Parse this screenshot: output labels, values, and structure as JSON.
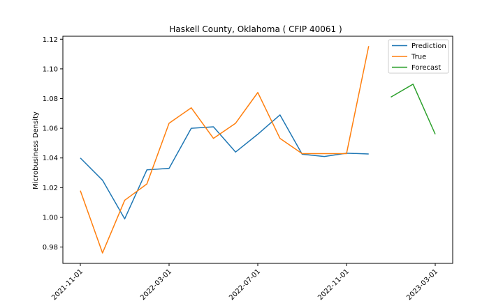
{
  "chart_data": {
    "type": "line",
    "title": "Haskell County, Oklahoma ( CFIP 40061 )",
    "xlabel": "",
    "ylabel": "Microbusiness Density",
    "x_dates": [
      "2021-11-01",
      "2021-12-01",
      "2022-01-01",
      "2022-02-01",
      "2022-03-01",
      "2022-04-01",
      "2022-05-01",
      "2022-06-01",
      "2022-07-01",
      "2022-08-01",
      "2022-09-01",
      "2022-10-01",
      "2022-11-01",
      "2022-12-01",
      "2023-01-01",
      "2023-02-01",
      "2023-03-01"
    ],
    "xticks": [
      "2021-11-01",
      "2022-03-01",
      "2022-07-01",
      "2022-11-01",
      "2023-03-01"
    ],
    "ylim": [
      0.969,
      1.122
    ],
    "yticks": [
      "0.98",
      "1.00",
      "1.02",
      "1.04",
      "1.06",
      "1.08",
      "1.10",
      "1.12"
    ],
    "legend_position": "top-right",
    "series": [
      {
        "name": "Prediction",
        "color": "#1f77b4",
        "x": [
          "2021-11-01",
          "2021-12-01",
          "2022-01-01",
          "2022-02-01",
          "2022-03-01",
          "2022-04-01",
          "2022-05-01",
          "2022-06-01",
          "2022-07-01",
          "2022-08-01",
          "2022-09-01",
          "2022-10-01",
          "2022-11-01",
          "2022-12-01"
        ],
        "values": [
          1.04,
          1.025,
          0.999,
          1.032,
          1.033,
          1.06,
          1.061,
          1.044,
          1.056,
          1.069,
          1.0425,
          1.041,
          1.0432,
          1.0427
        ]
      },
      {
        "name": "True",
        "color": "#ff7f0e",
        "x": [
          "2021-11-01",
          "2021-12-01",
          "2022-01-01",
          "2022-02-01",
          "2022-03-01",
          "2022-04-01",
          "2022-05-01",
          "2022-06-01",
          "2022-07-01",
          "2022-08-01",
          "2022-09-01",
          "2022-10-01",
          "2022-11-01",
          "2022-12-01"
        ],
        "values": [
          1.018,
          0.976,
          1.0115,
          1.0225,
          1.0634,
          1.0738,
          1.0532,
          1.0634,
          1.0841,
          1.0532,
          1.0429,
          1.0429,
          1.0429,
          1.1153
        ]
      },
      {
        "name": "Forecast",
        "color": "#2ca02c",
        "x": [
          "2023-01-01",
          "2023-02-01",
          "2023-03-01"
        ],
        "values": [
          1.081,
          1.0897,
          1.056
        ]
      }
    ]
  }
}
